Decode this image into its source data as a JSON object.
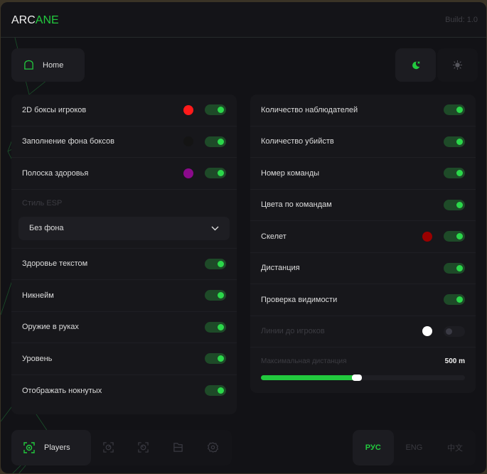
{
  "header": {
    "logo_a": "ARC",
    "logo_b": "ANE",
    "build": "Build: 1.0"
  },
  "home": {
    "label": "Home",
    "icon": "home-icon"
  },
  "theme": {
    "active": "dark",
    "dark_icon": "moon-icon",
    "light_icon": "sun-icon"
  },
  "left": {
    "rows": [
      {
        "label": "2D боксы игроков",
        "color": "#ff1a1a",
        "on": true
      },
      {
        "label": "Заполнение фона боксов",
        "color": "#141414",
        "on": true
      },
      {
        "label": "Полоска здоровья",
        "color": "#8b0a8b",
        "on": true
      }
    ],
    "style_label": "Стиль ESP",
    "style_value": "Без фона",
    "rows2": [
      {
        "label": "Здоровье текстом",
        "on": true
      },
      {
        "label": "Никнейм",
        "on": true
      },
      {
        "label": "Оружие в руках",
        "on": true
      },
      {
        "label": "Уровень",
        "on": true
      },
      {
        "label": "Отображать нокнутых",
        "on": true
      }
    ]
  },
  "right": {
    "rows": [
      {
        "label": "Количество наблюдателей",
        "on": true
      },
      {
        "label": "Количество убийств",
        "on": true
      },
      {
        "label": "Номер команды",
        "on": true
      },
      {
        "label": "Цвета по командам",
        "on": true
      },
      {
        "label": "Скелет",
        "color": "#9a0000",
        "on": true
      },
      {
        "label": "Дистанция",
        "on": true
      },
      {
        "label": "Проверка видимости",
        "on": true
      },
      {
        "label": "Линии до игроков",
        "color": "#ffffff",
        "on": false,
        "disabled": true
      }
    ],
    "slider": {
      "label": "Максимальная дистанция",
      "value": "500 m",
      "fraction": 0.47
    }
  },
  "nav": {
    "active": "Players",
    "icons": [
      "players-icon",
      "radar-icon",
      "aim-icon",
      "folder-icon",
      "gear-icon"
    ]
  },
  "lang": {
    "items": [
      "РУС",
      "ENG",
      "中文"
    ],
    "active": "РУС"
  },
  "colors": {
    "accent": "#22c93e",
    "panel": "#17171b",
    "bg": "#121216"
  }
}
